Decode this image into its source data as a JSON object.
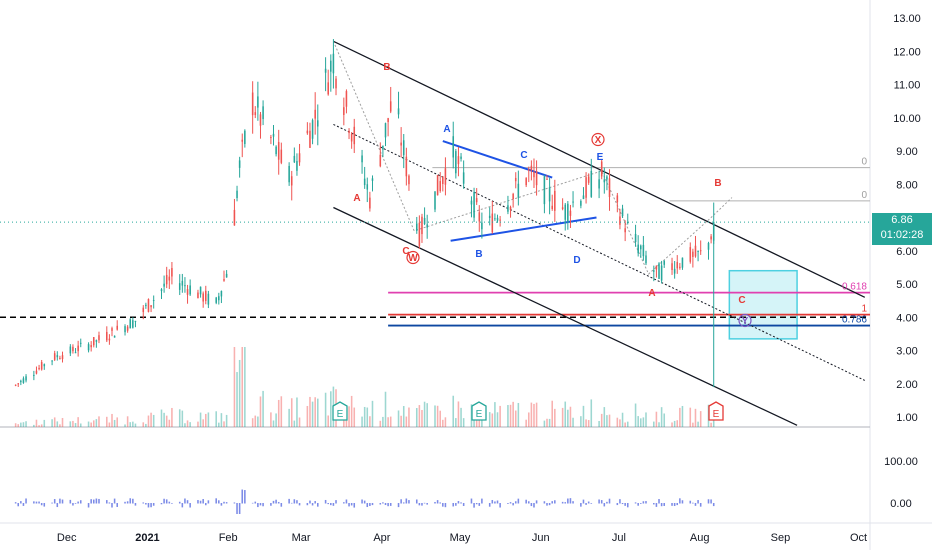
{
  "colors": {
    "up": "#26a69a",
    "down": "#ef5350",
    "channel": "#131722",
    "wave_red": "#e53935",
    "wave_blue": "#1e53e5",
    "fib_pink": "#e040b0",
    "fib_navy": "#0d47a1",
    "target_box": "#b2ebf2",
    "target_border": "#4dd0e1",
    "price_tag": "#26a69a"
  },
  "price_tag": {
    "price": "6.86",
    "countdown": "01:02:28"
  },
  "price_axis": [
    "13.00",
    "12.00",
    "11.00",
    "10.00",
    "9.00",
    "8.00",
    "7.00",
    "6.00",
    "5.00",
    "4.00",
    "3.00",
    "2.00",
    "1.00"
  ],
  "oscillator_axis": [
    "100.00",
    "0.00"
  ],
  "x_axis": [
    "Dec",
    "2021",
    "Feb",
    "Mar",
    "Apr",
    "May",
    "Jun",
    "Jul",
    "Aug",
    "Sep",
    "Oct"
  ],
  "wave_labels": [
    {
      "text": "B",
      "color": "red"
    },
    {
      "text": "A",
      "color": "red"
    },
    {
      "text": "C",
      "color": "red"
    },
    {
      "text": "W",
      "color": "red",
      "circled": true
    },
    {
      "text": "A",
      "color": "blue"
    },
    {
      "text": "B",
      "color": "blue"
    },
    {
      "text": "C",
      "color": "blue"
    },
    {
      "text": "D",
      "color": "blue"
    },
    {
      "text": "X",
      "color": "red",
      "circled": true
    },
    {
      "text": "E",
      "color": "blue"
    },
    {
      "text": "A",
      "color": "red"
    },
    {
      "text": "B",
      "color": "red"
    },
    {
      "text": "C",
      "color": "red"
    },
    {
      "text": "Y",
      "color": "purple",
      "circled": true
    }
  ],
  "fib_labels": [
    {
      "text": "0",
      "level": 8.5
    },
    {
      "text": "0",
      "level": 7.5
    },
    {
      "text": "0.618",
      "level": 4.74
    },
    {
      "text": "1",
      "level": 4.08
    },
    {
      "text": "0.786",
      "level": 3.75
    }
  ],
  "earnings_markers": [
    "E",
    "E",
    "E"
  ],
  "chart_data": {
    "type": "candlestick",
    "y_range": [
      0.7,
      13.2
    ],
    "oscillator_range": [
      -30,
      140
    ],
    "x_range": [
      "2020-11-10",
      "2021-10-10"
    ],
    "close_series": [
      {
        "date": "2020-11-15",
        "close": 1.9
      },
      {
        "date": "2020-12-01",
        "close": 2.8
      },
      {
        "date": "2020-12-15",
        "close": 3.2
      },
      {
        "date": "2021-01-01",
        "close": 3.9
      },
      {
        "date": "2021-01-15",
        "close": 5.2
      },
      {
        "date": "2021-02-01",
        "close": 4.4
      },
      {
        "date": "2021-02-06",
        "close": 5.6
      },
      {
        "date": "2021-02-10",
        "close": 8.5
      },
      {
        "date": "2021-02-15",
        "close": 10.5
      },
      {
        "date": "2021-03-01",
        "close": 8.2
      },
      {
        "date": "2021-03-10",
        "close": 9.8
      },
      {
        "date": "2021-03-18",
        "close": 11.8
      },
      {
        "date": "2021-04-01",
        "close": 7.6
      },
      {
        "date": "2021-04-10",
        "close": 10.6
      },
      {
        "date": "2021-04-20",
        "close": 6.5
      },
      {
        "date": "2021-05-03",
        "close": 9.0
      },
      {
        "date": "2021-05-15",
        "close": 6.6
      },
      {
        "date": "2021-06-01",
        "close": 8.3
      },
      {
        "date": "2021-06-15",
        "close": 7.2
      },
      {
        "date": "2021-06-29",
        "close": 8.3
      },
      {
        "date": "2021-07-10",
        "close": 6.5
      },
      {
        "date": "2021-07-20",
        "close": 5.3
      },
      {
        "date": "2021-08-01",
        "close": 5.8
      },
      {
        "date": "2021-08-08",
        "close": 5.9
      },
      {
        "date": "2021-08-11",
        "close": 6.86
      }
    ],
    "channel_lines": [
      {
        "name": "upper",
        "from": {
          "date": "2021-03-18",
          "price": 12.3
        },
        "to": {
          "date": "2021-10-08",
          "price": 4.6
        }
      },
      {
        "name": "lower",
        "from": {
          "date": "2021-03-18",
          "price": 7.3
        },
        "to": {
          "date": "2021-09-12",
          "price": 0.75
        }
      },
      {
        "name": "mid",
        "from": {
          "date": "2021-03-18",
          "price": 9.8
        },
        "to": {
          "date": "2021-10-08",
          "price": 2.1
        }
      }
    ],
    "horizontal_levels": [
      {
        "price": 4.0,
        "style": "dashed",
        "color": "#000000"
      },
      {
        "price": 4.74,
        "label": "0.618",
        "color": "#e040b0"
      },
      {
        "price": 4.08,
        "label": "1",
        "color": "#e53935"
      },
      {
        "price": 3.75,
        "label": "0.786",
        "color": "#0d47a1"
      },
      {
        "price": 8.5,
        "label": "0",
        "color": "#b0b0b0"
      },
      {
        "price": 7.5,
        "label": "0",
        "color": "#b0b0b0"
      }
    ],
    "target_zone": {
      "from_date": "2021-08-17",
      "to_date": "2021-09-12",
      "low": 3.35,
      "high": 5.4
    },
    "last_price": 6.86
  }
}
